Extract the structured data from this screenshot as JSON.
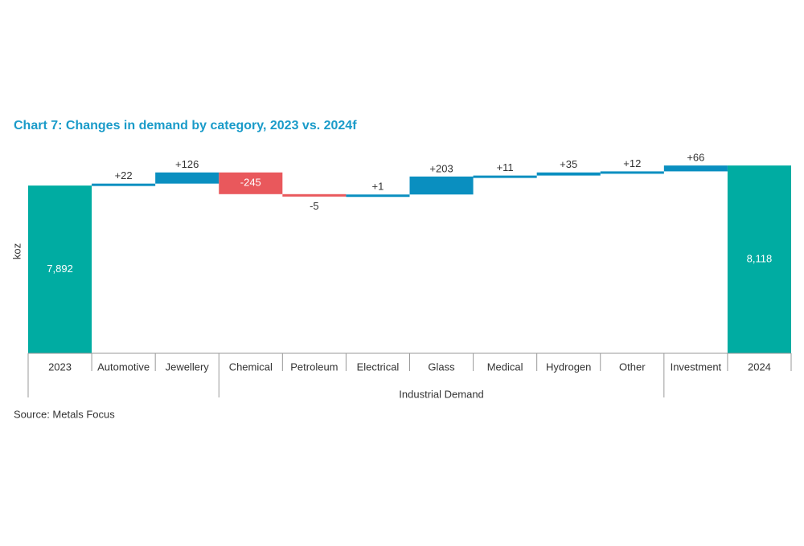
{
  "chart_data": {
    "type": "waterfall",
    "title": "Chart 7: Changes in demand by category, 2023 vs. 2024f",
    "y_label": "koz",
    "source": "Source: Metals Focus",
    "categories": [
      "2023",
      "Automotive",
      "Jewellery",
      "Chemical",
      "Petroleum",
      "Electrical",
      "Glass",
      "Medical",
      "Hydrogen",
      "Other",
      "Investment",
      "2024"
    ],
    "measure": [
      "total",
      "relative",
      "relative",
      "relative",
      "relative",
      "relative",
      "relative",
      "relative",
      "relative",
      "relative",
      "relative",
      "total"
    ],
    "values": [
      7892,
      22,
      126,
      -245,
      -5,
      1,
      203,
      11,
      35,
      12,
      66,
      8118
    ],
    "value_labels": [
      "7,892",
      "+22",
      "+126",
      "-245",
      "-5",
      "+1",
      "+203",
      "+11",
      "+35",
      "+12",
      "+66",
      "8,118"
    ],
    "groups": [
      {
        "label": "Industrial Demand",
        "start": 3,
        "end": 9
      }
    ],
    "total_color": "#00aca2",
    "increase_color": "#0a8fc0",
    "decrease_color": "#e9585c",
    "ylim": [
      6000,
      8400
    ]
  }
}
